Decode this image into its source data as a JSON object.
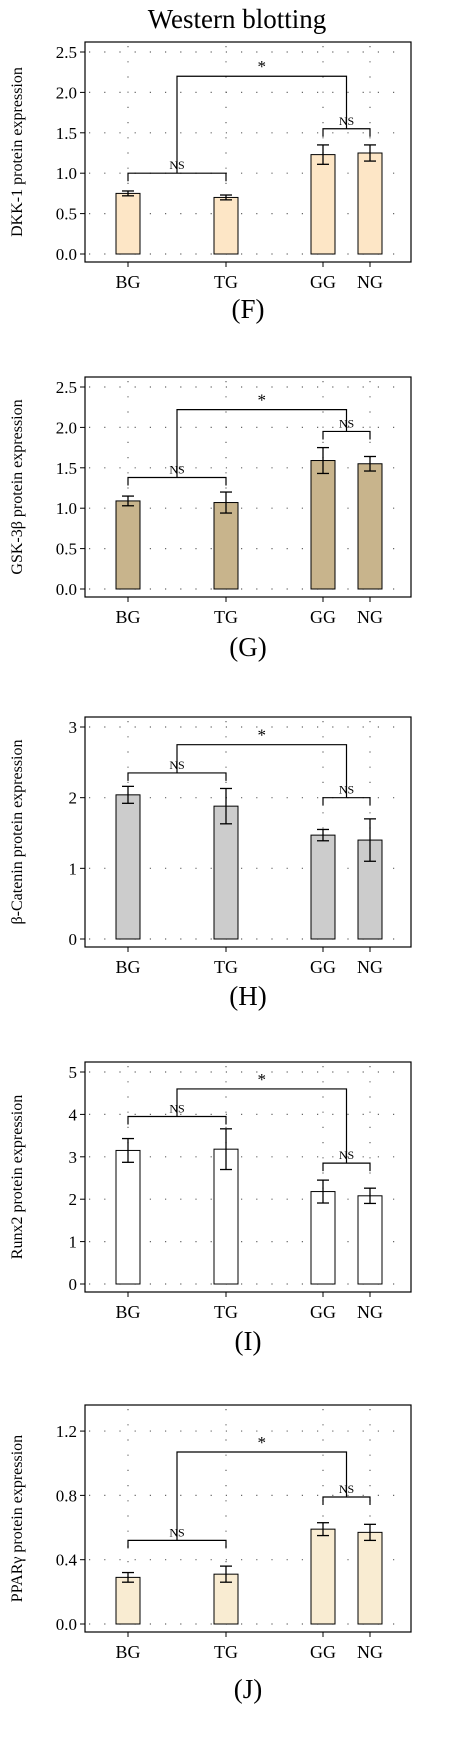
{
  "figure_title": "Western blotting",
  "chart_data": [
    {
      "type": "bar",
      "panel_label": "(F)",
      "categories": [
        "BG",
        "TG",
        "GG",
        "NG"
      ],
      "values": [
        0.75,
        0.7,
        1.23,
        1.25
      ],
      "errors": [
        0.03,
        0.03,
        0.12,
        0.1
      ],
      "ylabel": "DKK-1 protein expression",
      "ylim": [
        0,
        2.5
      ],
      "yticks": [
        0.0,
        0.5,
        1.0,
        1.5,
        2.0,
        2.5
      ],
      "ytick_labels": [
        "0.0",
        "0.5",
        "1.0",
        "1.5",
        "2.0",
        "2.5"
      ],
      "bar_color": "#fde6c6",
      "grid": "dotted",
      "significance": [
        {
          "from": 0,
          "to": 1,
          "level": 1.0,
          "label": "NS"
        },
        {
          "from": 2,
          "to": 3,
          "level": 1.55,
          "label": "NS"
        },
        {
          "from_pair": [
            0,
            1
          ],
          "to_pair": [
            2,
            3
          ],
          "level": 2.2,
          "label": "*"
        }
      ]
    },
    {
      "type": "bar",
      "panel_label": "(G)",
      "categories": [
        "BG",
        "TG",
        "GG",
        "NG"
      ],
      "values": [
        1.09,
        1.07,
        1.59,
        1.55
      ],
      "errors": [
        0.06,
        0.13,
        0.16,
        0.09
      ],
      "ylabel": "GSK-3β protein expression",
      "ylim": [
        0,
        2.5
      ],
      "yticks": [
        0.0,
        0.5,
        1.0,
        1.5,
        2.0,
        2.5
      ],
      "ytick_labels": [
        "0.0",
        "0.5",
        "1.0",
        "1.5",
        "2.0",
        "2.5"
      ],
      "bar_color": "#c8b48c",
      "grid": "dotted",
      "significance": [
        {
          "from": 0,
          "to": 1,
          "level": 1.38,
          "label": "NS"
        },
        {
          "from": 2,
          "to": 3,
          "level": 1.95,
          "label": "NS"
        },
        {
          "from_pair": [
            0,
            1
          ],
          "to_pair": [
            2,
            3
          ],
          "level": 2.22,
          "label": "*"
        }
      ]
    },
    {
      "type": "bar",
      "panel_label": "(H)",
      "categories": [
        "BG",
        "TG",
        "GG",
        "NG"
      ],
      "values": [
        2.04,
        1.88,
        1.47,
        1.4
      ],
      "errors": [
        0.12,
        0.25,
        0.08,
        0.3
      ],
      "ylabel": "β-Catenin protein expression",
      "ylim": [
        0,
        3
      ],
      "yticks": [
        0,
        1,
        2,
        3
      ],
      "ytick_labels": [
        "0",
        "1",
        "2",
        "3"
      ],
      "bar_color": "#cccccc",
      "grid": "dotted",
      "significance": [
        {
          "from": 0,
          "to": 1,
          "level": 2.35,
          "label": "NS"
        },
        {
          "from": 2,
          "to": 3,
          "level": 2.0,
          "label": "NS"
        },
        {
          "from_pair": [
            0,
            1
          ],
          "to_pair": [
            2,
            3
          ],
          "level": 2.75,
          "label": "*"
        }
      ]
    },
    {
      "type": "bar",
      "panel_label": "(I)",
      "categories": [
        "BG",
        "TG",
        "GG",
        "NG"
      ],
      "values": [
        3.15,
        3.18,
        2.18,
        2.08
      ],
      "errors": [
        0.28,
        0.48,
        0.27,
        0.18
      ],
      "ylabel": "Runx2 protein expression",
      "ylim": [
        0,
        5
      ],
      "yticks": [
        0,
        1,
        2,
        3,
        4,
        5
      ],
      "ytick_labels": [
        "0",
        "1",
        "2",
        "3",
        "4",
        "5"
      ],
      "bar_color": "#ffffff",
      "grid": "dotted",
      "significance": [
        {
          "from": 0,
          "to": 1,
          "level": 3.95,
          "label": "NS"
        },
        {
          "from": 2,
          "to": 3,
          "level": 2.85,
          "label": "NS"
        },
        {
          "from_pair": [
            0,
            1
          ],
          "to_pair": [
            2,
            3
          ],
          "level": 4.6,
          "label": "*"
        }
      ]
    },
    {
      "type": "bar",
      "panel_label": "(J)",
      "categories": [
        "BG",
        "TG",
        "GG",
        "NG"
      ],
      "values": [
        0.29,
        0.31,
        0.59,
        0.57
      ],
      "errors": [
        0.03,
        0.05,
        0.04,
        0.05
      ],
      "ylabel": "PPARγ protein expression",
      "ylim": [
        0,
        1.3
      ],
      "yticks": [
        0.0,
        0.4,
        0.8,
        1.2
      ],
      "ytick_labels": [
        "0.0",
        "0.4",
        "0.8",
        "1.2"
      ],
      "bar_color": "#f9ecd2",
      "grid": "dotted",
      "significance": [
        {
          "from": 0,
          "to": 1,
          "level": 0.52,
          "label": "NS"
        },
        {
          "from": 2,
          "to": 3,
          "level": 0.79,
          "label": "NS"
        },
        {
          "from_pair": [
            0,
            1
          ],
          "to_pair": [
            2,
            3
          ],
          "level": 1.07,
          "label": "*"
        }
      ]
    }
  ]
}
